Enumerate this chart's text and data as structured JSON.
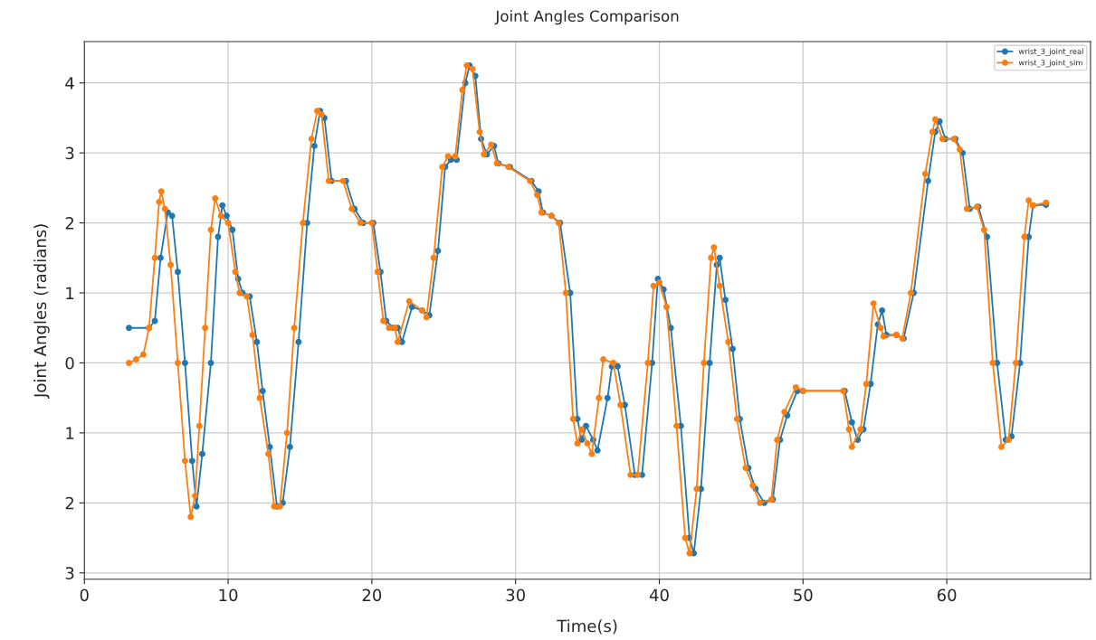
{
  "chart_data": {
    "type": "line",
    "title": "Joint Angles Comparison",
    "xlabel": "Time(s)",
    "ylabel": "Joint Angles (radians)",
    "xlim": [
      0,
      70
    ],
    "xticks": [
      0,
      10,
      20,
      30,
      40,
      50,
      60
    ],
    "ylim": [
      -3.09,
      4.59
    ],
    "yticks": [
      {
        "value": -3,
        "label": "3"
      },
      {
        "value": -2,
        "label": "2"
      },
      {
        "value": -1,
        "label": "1"
      },
      0,
      1,
      2,
      3,
      4
    ],
    "grid": true,
    "legend": "top right",
    "marker": "circle",
    "line_style": "solid",
    "series": [
      {
        "name": "wrist_3_joint_real",
        "color": "#1f77b4",
        "x": [
          3.1,
          4.5,
          4.9,
          5.3,
          5.8,
          6.1,
          6.5,
          7.0,
          7.5,
          7.8,
          8.2,
          8.8,
          9.3,
          9.6,
          9.9,
          10.3,
          10.7,
          11.0,
          11.5,
          12.0,
          12.4,
          12.9,
          13.4,
          13.8,
          14.3,
          14.9,
          15.5,
          16.0,
          16.4,
          16.7,
          17.2,
          18.2,
          18.8,
          19.4,
          20.1,
          20.6,
          21.0,
          21.5,
          21.8,
          22.1,
          22.8,
          23.5,
          24.0,
          24.6,
          25.1,
          25.5,
          25.9,
          26.5,
          26.8,
          27.2,
          27.6,
          28.0,
          28.5,
          28.8,
          29.6,
          31.1,
          31.6,
          31.9,
          32.5,
          33.1,
          33.8,
          34.3,
          34.6,
          34.9,
          35.4,
          35.7,
          36.4,
          36.7,
          37.1,
          37.6,
          38.3,
          38.8,
          39.5,
          39.9,
          40.3,
          40.8,
          41.5,
          42.1,
          42.4,
          42.9,
          43.5,
          44.0,
          44.2,
          44.6,
          45.1,
          45.6,
          46.2,
          46.7,
          47.3,
          47.9,
          48.4,
          48.9,
          49.6,
          50.0,
          52.9,
          53.4,
          53.8,
          54.2,
          54.7,
          55.2,
          55.5,
          55.8,
          56.5,
          57.0,
          57.7,
          58.7,
          59.2,
          59.5,
          59.9,
          60.6,
          61.1,
          61.6,
          62.2,
          62.8,
          63.5,
          64.1,
          64.5,
          65.1,
          65.7,
          66.0,
          66.9
        ],
        "values": [
          0.5,
          0.5,
          0.6,
          1.5,
          2.15,
          2.1,
          1.3,
          0.0,
          -1.4,
          -2.05,
          -1.3,
          0.0,
          1.8,
          2.25,
          2.1,
          1.9,
          1.2,
          1.0,
          0.95,
          0.3,
          -0.4,
          -1.2,
          -2.05,
          -2.0,
          -1.2,
          0.3,
          2.0,
          3.1,
          3.6,
          3.5,
          2.6,
          2.6,
          2.2,
          2.0,
          2.0,
          1.3,
          0.6,
          0.5,
          0.5,
          0.3,
          0.8,
          0.75,
          0.68,
          1.6,
          2.8,
          2.9,
          2.9,
          4.0,
          4.25,
          4.1,
          3.2,
          2.98,
          3.1,
          2.85,
          2.8,
          2.6,
          2.45,
          2.15,
          2.1,
          2.0,
          1.0,
          -0.8,
          -1.1,
          -0.9,
          -1.1,
          -1.25,
          -0.5,
          -0.05,
          -0.05,
          -0.6,
          -1.6,
          -1.6,
          0.0,
          1.2,
          1.05,
          0.5,
          -0.9,
          -2.5,
          -2.72,
          -1.8,
          0.0,
          1.4,
          1.5,
          0.9,
          0.2,
          -0.8,
          -1.5,
          -1.8,
          -2.0,
          -1.95,
          -1.1,
          -0.75,
          -0.4,
          -0.4,
          -0.4,
          -0.85,
          -1.1,
          -0.95,
          -0.3,
          0.55,
          0.75,
          0.4,
          0.4,
          0.35,
          1.0,
          2.6,
          3.3,
          3.45,
          3.2,
          3.2,
          3.0,
          2.2,
          2.23,
          1.8,
          0.0,
          -1.1,
          -1.05,
          0.0,
          1.8,
          2.25,
          2.26
        ]
      },
      {
        "name": "wrist_3_joint_sim",
        "color": "#ff7f0e",
        "x": [
          3.1,
          3.6,
          4.1,
          4.5,
          4.9,
          5.2,
          5.35,
          5.6,
          6.0,
          6.5,
          7.0,
          7.4,
          7.7,
          8.0,
          8.4,
          8.8,
          9.1,
          9.5,
          10.0,
          10.5,
          10.8,
          11.3,
          11.7,
          12.2,
          12.8,
          13.2,
          13.6,
          14.1,
          14.6,
          15.2,
          15.8,
          16.2,
          16.5,
          17.0,
          18.0,
          18.6,
          19.2,
          20.0,
          20.4,
          20.8,
          21.2,
          21.6,
          21.8,
          22.6,
          23.5,
          23.8,
          24.3,
          24.9,
          25.3,
          25.8,
          26.3,
          26.6,
          27.0,
          27.5,
          27.8,
          28.3,
          28.7,
          29.5,
          31.0,
          31.5,
          31.8,
          32.5,
          33.0,
          33.5,
          34.0,
          34.3,
          34.6,
          35.0,
          35.3,
          35.8,
          36.1,
          36.8,
          37.3,
          38.0,
          38.5,
          39.2,
          39.6,
          40.0,
          40.5,
          41.2,
          41.8,
          42.1,
          42.6,
          43.1,
          43.6,
          43.8,
          44.2,
          44.8,
          45.4,
          46.0,
          46.5,
          47.0,
          47.8,
          48.2,
          48.7,
          49.5,
          50.0,
          52.8,
          53.2,
          53.4,
          54.0,
          54.4,
          54.9,
          55.4,
          55.6,
          56.5,
          56.9,
          57.5,
          58.5,
          59.0,
          59.2,
          59.7,
          60.5,
          60.9,
          61.4,
          62.1,
          62.6,
          63.2,
          63.8,
          64.3,
          64.8,
          65.4,
          65.7,
          66.0,
          66.9
        ],
        "values": [
          0.0,
          0.05,
          0.12,
          0.5,
          1.5,
          2.3,
          2.45,
          2.2,
          1.4,
          0.0,
          -1.4,
          -2.2,
          -1.9,
          -0.9,
          0.5,
          1.9,
          2.35,
          2.1,
          2.0,
          1.3,
          1.0,
          0.95,
          0.4,
          -0.5,
          -1.3,
          -2.05,
          -2.05,
          -1.0,
          0.5,
          2.0,
          3.2,
          3.6,
          3.55,
          2.6,
          2.6,
          2.2,
          2.0,
          2.0,
          1.3,
          0.6,
          0.5,
          0.5,
          0.3,
          0.88,
          0.75,
          0.65,
          1.5,
          2.8,
          2.95,
          2.95,
          3.9,
          4.25,
          4.2,
          3.3,
          2.98,
          3.12,
          2.85,
          2.8,
          2.6,
          2.4,
          2.15,
          2.1,
          2.0,
          1.0,
          -0.8,
          -1.15,
          -0.95,
          -1.15,
          -1.3,
          -0.5,
          0.05,
          0.0,
          -0.6,
          -1.6,
          -1.6,
          0.0,
          1.1,
          1.15,
          0.8,
          -0.9,
          -2.5,
          -2.72,
          -1.8,
          0.0,
          1.5,
          1.65,
          1.1,
          0.3,
          -0.8,
          -1.5,
          -1.75,
          -2.0,
          -1.95,
          -1.1,
          -0.7,
          -0.35,
          -0.4,
          -0.4,
          -0.95,
          -1.2,
          -0.95,
          -0.3,
          0.85,
          0.5,
          0.38,
          0.4,
          0.35,
          1.0,
          2.7,
          3.3,
          3.48,
          3.2,
          3.2,
          3.05,
          2.2,
          2.23,
          1.9,
          0.0,
          -1.2,
          -1.1,
          0.0,
          1.8,
          2.32,
          2.25,
          2.29
        ]
      }
    ]
  }
}
